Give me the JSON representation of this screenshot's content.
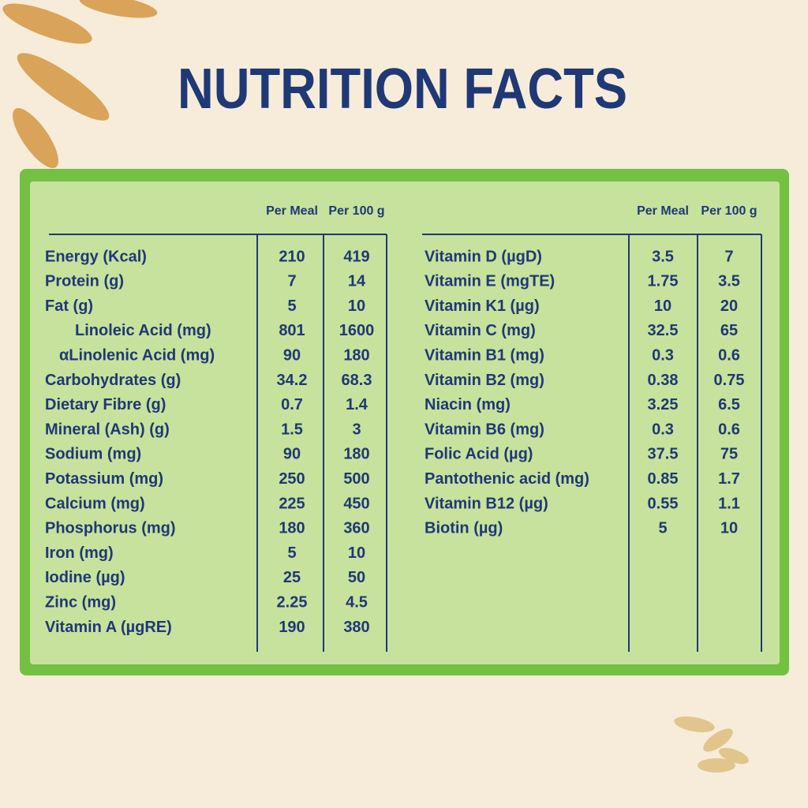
{
  "title": "NUTRITION FACTS",
  "tables": [
    {
      "headers": [
        "Per Meal",
        "Per 100 g"
      ],
      "rows": [
        [
          "Energy (Kcal)",
          "210",
          "419"
        ],
        [
          "Protein (g)",
          "7",
          "14"
        ],
        [
          "Fat (g)",
          "5",
          "10"
        ],
        [
          "Linoleic Acid (mg)",
          "801",
          "1600"
        ],
        [
          "αLinolenic Acid (mg)",
          "90",
          "180"
        ],
        [
          "Carbohydrates (g)",
          "34.2",
          "68.3"
        ],
        [
          "Dietary Fibre (g)",
          "0.7",
          "1.4"
        ],
        [
          "Mineral (Ash) (g)",
          "1.5",
          "3"
        ],
        [
          "Sodium (mg)",
          "90",
          "180"
        ],
        [
          "Potassium (mg)",
          "250",
          "500"
        ],
        [
          "Calcium (mg)",
          "225",
          "450"
        ],
        [
          "Phosphorus (mg)",
          "180",
          "360"
        ],
        [
          "Iron (mg)",
          "5",
          "10"
        ],
        [
          "Iodine (µg)",
          "25",
          "50"
        ],
        [
          "Zinc (mg)",
          "2.25",
          "4.5"
        ],
        [
          "Vitamin A (µgRE)",
          "190",
          "380"
        ]
      ]
    },
    {
      "headers": [
        "Per Meal",
        "Per 100 g"
      ],
      "rows": [
        [
          "Vitamin D (µgD)",
          "3.5",
          "7"
        ],
        [
          "Vitamin E (mgTE)",
          "1.75",
          "3.5"
        ],
        [
          "Vitamin K1 (µg)",
          "10",
          "20"
        ],
        [
          "Vitamin C (mg)",
          "32.5",
          "65"
        ],
        [
          "Vitamin B1 (mg)",
          "0.3",
          "0.6"
        ],
        [
          "Vitamin B2 (mg)",
          "0.38",
          "0.75"
        ],
        [
          "Niacin (mg)",
          "3.25",
          "6.5"
        ],
        [
          "Vitamin B6 (mg)",
          "0.3",
          "0.6"
        ],
        [
          "Folic Acid (µg)",
          "37.5",
          "75"
        ],
        [
          "Pantothenic acid (mg)",
          "0.85",
          "1.7"
        ],
        [
          "Vitamin B12 (µg)",
          "0.55",
          "1.1"
        ],
        [
          "Biotin (µg)",
          "5",
          "10"
        ]
      ]
    }
  ]
}
